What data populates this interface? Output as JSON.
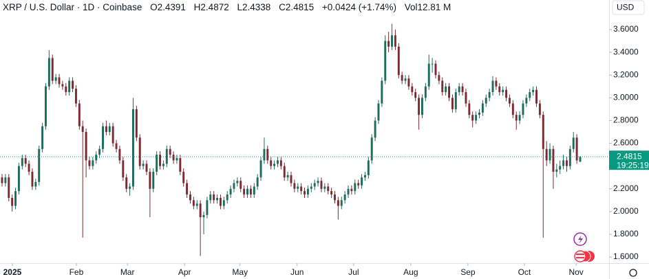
{
  "chart_data": {
    "type": "candlestick",
    "title": "XRP / U.S. Dollar · 1D · Coinbase",
    "ohlc_labels": [
      "O",
      "H",
      "L",
      "C"
    ],
    "change": "+0.0424 (+1.74%)",
    "volume_label": "Vol",
    "volume": "12.81 M",
    "currency": "USD",
    "countdown": "19:25:19",
    "up_color": "#1e6b5c",
    "down_color": "#7a2a31",
    "last_color": "#089981",
    "grid": false,
    "ylim": [
      1.546,
      3.86
    ],
    "yticks": [
      {
        "value": 1.6,
        "label": "1.6000"
      },
      {
        "value": 1.8,
        "label": "1.8000"
      },
      {
        "value": 2.0,
        "label": "2.0000"
      },
      {
        "value": 2.2,
        "label": "2.2000"
      },
      {
        "value": 2.4,
        "label": "2.4000"
      },
      {
        "value": 2.6,
        "label": "2.6000"
      },
      {
        "value": 2.8,
        "label": "2.8000"
      },
      {
        "value": 3.0,
        "label": "3.0000"
      },
      {
        "value": 3.2,
        "label": "3.2000"
      },
      {
        "value": 3.4,
        "label": "3.4000"
      },
      {
        "value": 3.6,
        "label": "3.6000"
      }
    ],
    "xlim": [
      -0.614,
      180.6
    ],
    "xticks": [
      {
        "value": 3.07,
        "label": "2025"
      },
      {
        "value": 22.1,
        "label": "Feb"
      },
      {
        "value": 37.3,
        "label": "Mar"
      },
      {
        "value": 54.3,
        "label": "Apr"
      },
      {
        "value": 70.8,
        "label": "May"
      },
      {
        "value": 87.8,
        "label": "Jun"
      },
      {
        "value": 104.6,
        "label": "Jul"
      },
      {
        "value": 121.6,
        "label": "Aug"
      },
      {
        "value": 138.6,
        "label": "Sep"
      },
      {
        "value": 155.4,
        "label": "Oct"
      },
      {
        "value": 170.8,
        "label": "Nov"
      }
    ],
    "candles": [
      [
        2.3,
        2.33,
        2.22,
        2.25
      ],
      [
        2.25,
        2.33,
        2.22,
        2.3
      ],
      [
        2.3,
        2.33,
        2.09,
        2.12
      ],
      [
        2.12,
        2.15,
        2.0,
        2.05
      ],
      [
        2.05,
        2.21,
        2.02,
        2.18
      ],
      [
        2.18,
        2.43,
        2.15,
        2.4
      ],
      [
        2.4,
        2.5,
        2.37,
        2.47
      ],
      [
        2.47,
        2.5,
        2.39,
        2.42
      ],
      [
        2.42,
        2.45,
        2.32,
        2.35
      ],
      [
        2.35,
        2.38,
        2.19,
        2.22
      ],
      [
        2.22,
        2.29,
        2.19,
        2.26
      ],
      [
        2.26,
        2.58,
        2.23,
        2.55
      ],
      [
        2.55,
        2.78,
        2.52,
        2.75
      ],
      [
        2.75,
        3.13,
        2.72,
        3.1
      ],
      [
        3.1,
        3.42,
        3.07,
        3.35
      ],
      [
        3.35,
        3.38,
        3.12,
        3.15
      ],
      [
        3.15,
        3.21,
        3.12,
        3.18
      ],
      [
        3.18,
        3.21,
        3.09,
        3.12
      ],
      [
        3.12,
        3.15,
        3.07,
        3.1
      ],
      [
        3.1,
        3.13,
        3.02,
        3.05
      ],
      [
        3.05,
        3.18,
        3.02,
        3.15
      ],
      [
        3.15,
        3.18,
        3.05,
        3.08
      ],
      [
        3.08,
        3.11,
        2.92,
        2.95
      ],
      [
        2.95,
        2.98,
        2.72,
        2.75
      ],
      [
        2.75,
        2.8,
        1.77,
        2.7
      ],
      [
        2.7,
        2.73,
        2.3,
        2.45
      ],
      [
        2.45,
        2.48,
        2.37,
        2.4
      ],
      [
        2.4,
        2.48,
        2.37,
        2.45
      ],
      [
        2.45,
        2.53,
        2.42,
        2.5
      ],
      [
        2.5,
        2.58,
        2.47,
        2.55
      ],
      [
        2.55,
        2.78,
        2.52,
        2.75
      ],
      [
        2.75,
        2.8,
        2.67,
        2.7
      ],
      [
        2.7,
        2.78,
        2.67,
        2.75
      ],
      [
        2.75,
        2.78,
        2.57,
        2.6
      ],
      [
        2.6,
        2.63,
        2.52,
        2.55
      ],
      [
        2.55,
        2.58,
        2.42,
        2.45
      ],
      [
        2.45,
        2.48,
        2.27,
        2.3
      ],
      [
        2.3,
        2.33,
        2.17,
        2.2
      ],
      [
        2.2,
        2.25,
        2.14,
        2.22
      ],
      [
        2.22,
        3.0,
        2.19,
        2.9
      ],
      [
        2.9,
        2.93,
        2.62,
        2.65
      ],
      [
        2.65,
        2.68,
        2.37,
        2.4
      ],
      [
        2.4,
        2.45,
        2.37,
        2.42
      ],
      [
        2.42,
        2.45,
        2.32,
        2.35
      ],
      [
        2.35,
        2.38,
        1.95,
        2.2
      ],
      [
        2.2,
        2.38,
        2.17,
        2.35
      ],
      [
        2.35,
        2.53,
        2.32,
        2.5
      ],
      [
        2.5,
        2.53,
        2.37,
        2.4
      ],
      [
        2.4,
        2.45,
        2.37,
        2.42
      ],
      [
        2.42,
        2.58,
        2.39,
        2.55
      ],
      [
        2.55,
        2.58,
        2.47,
        2.5
      ],
      [
        2.5,
        2.53,
        2.42,
        2.45
      ],
      [
        2.45,
        2.5,
        2.42,
        2.47
      ],
      [
        2.47,
        2.5,
        2.32,
        2.35
      ],
      [
        2.35,
        2.38,
        2.22,
        2.25
      ],
      [
        2.25,
        2.28,
        2.12,
        2.15
      ],
      [
        2.15,
        2.18,
        2.07,
        2.1
      ],
      [
        2.1,
        2.13,
        2.02,
        2.05
      ],
      [
        2.05,
        2.1,
        2.02,
        2.07
      ],
      [
        2.07,
        2.1,
        1.61,
        1.95
      ],
      [
        1.95,
        2.0,
        1.8,
        1.97
      ],
      [
        1.97,
        2.13,
        1.94,
        2.1
      ],
      [
        2.1,
        2.18,
        2.07,
        2.15
      ],
      [
        2.15,
        2.18,
        2.07,
        2.1
      ],
      [
        2.1,
        2.15,
        2.07,
        2.12
      ],
      [
        2.12,
        2.15,
        2.02,
        2.05
      ],
      [
        2.05,
        2.13,
        2.02,
        2.1
      ],
      [
        2.1,
        2.18,
        2.07,
        2.15
      ],
      [
        2.15,
        2.23,
        2.12,
        2.2
      ],
      [
        2.2,
        2.28,
        2.17,
        2.25
      ],
      [
        2.25,
        2.3,
        2.22,
        2.27
      ],
      [
        2.27,
        2.3,
        2.17,
        2.2
      ],
      [
        2.2,
        2.23,
        2.12,
        2.15
      ],
      [
        2.15,
        2.23,
        2.12,
        2.2
      ],
      [
        2.2,
        2.23,
        2.12,
        2.15
      ],
      [
        2.15,
        2.25,
        2.12,
        2.22
      ],
      [
        2.22,
        2.33,
        2.19,
        2.3
      ],
      [
        2.3,
        2.48,
        2.27,
        2.45
      ],
      [
        2.45,
        2.65,
        2.42,
        2.55
      ],
      [
        2.55,
        2.58,
        2.42,
        2.45
      ],
      [
        2.45,
        2.48,
        2.37,
        2.4
      ],
      [
        2.4,
        2.45,
        2.37,
        2.42
      ],
      [
        2.42,
        2.48,
        2.39,
        2.45
      ],
      [
        2.45,
        2.48,
        2.37,
        2.4
      ],
      [
        2.4,
        2.43,
        2.27,
        2.3
      ],
      [
        2.3,
        2.35,
        2.27,
        2.32
      ],
      [
        2.32,
        2.35,
        2.22,
        2.25
      ],
      [
        2.25,
        2.28,
        2.17,
        2.2
      ],
      [
        2.2,
        2.25,
        2.17,
        2.22
      ],
      [
        2.22,
        2.25,
        2.15,
        2.18
      ],
      [
        2.18,
        2.21,
        2.12,
        2.15
      ],
      [
        2.15,
        2.23,
        2.12,
        2.2
      ],
      [
        2.2,
        2.25,
        2.17,
        2.22
      ],
      [
        2.22,
        2.28,
        2.19,
        2.25
      ],
      [
        2.25,
        2.3,
        2.22,
        2.27
      ],
      [
        2.27,
        2.3,
        2.17,
        2.2
      ],
      [
        2.2,
        2.25,
        2.17,
        2.22
      ],
      [
        2.22,
        2.25,
        2.15,
        2.18
      ],
      [
        2.18,
        2.21,
        2.12,
        2.15
      ],
      [
        2.15,
        2.18,
        2.07,
        2.1
      ],
      [
        2.1,
        2.13,
        1.93,
        2.05
      ],
      [
        2.05,
        2.13,
        2.02,
        2.1
      ],
      [
        2.1,
        2.18,
        2.07,
        2.15
      ],
      [
        2.15,
        2.23,
        2.12,
        2.2
      ],
      [
        2.2,
        2.23,
        2.15,
        2.18
      ],
      [
        2.18,
        2.28,
        2.15,
        2.25
      ],
      [
        2.25,
        2.28,
        2.2,
        2.23
      ],
      [
        2.23,
        2.33,
        2.2,
        2.3
      ],
      [
        2.3,
        2.35,
        2.27,
        2.32
      ],
      [
        2.32,
        2.48,
        2.29,
        2.45
      ],
      [
        2.45,
        2.68,
        2.42,
        2.65
      ],
      [
        2.65,
        2.83,
        2.62,
        2.8
      ],
      [
        2.8,
        2.98,
        2.77,
        2.95
      ],
      [
        2.95,
        3.18,
        2.92,
        3.15
      ],
      [
        3.15,
        3.55,
        3.12,
        3.5
      ],
      [
        3.5,
        3.58,
        3.4,
        3.45
      ],
      [
        3.45,
        3.65,
        3.42,
        3.55
      ],
      [
        3.55,
        3.6,
        3.42,
        3.45
      ],
      [
        3.45,
        3.48,
        3.17,
        3.2
      ],
      [
        3.2,
        3.23,
        3.12,
        3.15
      ],
      [
        3.15,
        3.2,
        3.12,
        3.17
      ],
      [
        3.17,
        3.2,
        3.07,
        3.1
      ],
      [
        3.1,
        3.13,
        3.02,
        3.05
      ],
      [
        3.05,
        3.08,
        2.97,
        3.0
      ],
      [
        3.0,
        3.03,
        2.72,
        2.85
      ],
      [
        2.85,
        3.03,
        2.82,
        3.0
      ],
      [
        3.0,
        3.13,
        2.97,
        3.1
      ],
      [
        3.1,
        3.38,
        3.07,
        3.3
      ],
      [
        3.3,
        3.35,
        3.22,
        3.3
      ],
      [
        3.3,
        3.33,
        3.17,
        3.2
      ],
      [
        3.2,
        3.23,
        3.12,
        3.15
      ],
      [
        3.15,
        3.18,
        3.02,
        3.05
      ],
      [
        3.05,
        3.13,
        3.02,
        3.1
      ],
      [
        3.1,
        3.13,
        2.97,
        3.0
      ],
      [
        3.0,
        3.03,
        2.87,
        2.9
      ],
      [
        2.9,
        3.08,
        2.87,
        3.05
      ],
      [
        3.05,
        3.13,
        3.02,
        3.1
      ],
      [
        3.1,
        3.13,
        3.02,
        3.05
      ],
      [
        3.05,
        3.08,
        2.92,
        2.95
      ],
      [
        2.95,
        2.98,
        2.82,
        2.85
      ],
      [
        2.85,
        2.88,
        2.74,
        2.8
      ],
      [
        2.8,
        2.88,
        2.77,
        2.85
      ],
      [
        2.85,
        2.9,
        2.82,
        2.87
      ],
      [
        2.87,
        2.98,
        2.84,
        2.95
      ],
      [
        2.95,
        3.03,
        2.92,
        3.0
      ],
      [
        3.0,
        3.08,
        2.97,
        3.05
      ],
      [
        3.05,
        3.19,
        3.02,
        3.15
      ],
      [
        3.15,
        3.18,
        3.07,
        3.1
      ],
      [
        3.1,
        3.13,
        3.02,
        3.05
      ],
      [
        3.05,
        3.1,
        3.02,
        3.07
      ],
      [
        3.07,
        3.1,
        2.97,
        3.0
      ],
      [
        3.0,
        3.03,
        2.92,
        2.95
      ],
      [
        2.95,
        2.98,
        2.82,
        2.85
      ],
      [
        2.85,
        2.88,
        2.72,
        2.8
      ],
      [
        2.8,
        2.88,
        2.77,
        2.85
      ],
      [
        2.85,
        2.98,
        2.82,
        2.95
      ],
      [
        2.95,
        3.03,
        2.92,
        3.0
      ],
      [
        3.0,
        3.08,
        2.97,
        3.05
      ],
      [
        3.05,
        3.1,
        3.02,
        3.07
      ],
      [
        3.07,
        3.1,
        2.92,
        2.95
      ],
      [
        2.95,
        2.98,
        2.82,
        2.85
      ],
      [
        2.85,
        2.88,
        1.77,
        2.55
      ],
      [
        2.55,
        2.62,
        2.4,
        2.45
      ],
      [
        2.45,
        2.6,
        2.42,
        2.55
      ],
      [
        2.55,
        2.58,
        2.2,
        2.35
      ],
      [
        2.35,
        2.42,
        2.3,
        2.37
      ],
      [
        2.37,
        2.45,
        2.33,
        2.4
      ],
      [
        2.4,
        2.5,
        2.37,
        2.45
      ],
      [
        2.45,
        2.48,
        2.35,
        2.4
      ],
      [
        2.4,
        2.58,
        2.37,
        2.55
      ],
      [
        2.55,
        2.7,
        2.52,
        2.65
      ],
      [
        2.65,
        2.68,
        2.42,
        2.45
      ],
      [
        2.4391,
        2.4872,
        2.4338,
        2.4815
      ]
    ]
  }
}
